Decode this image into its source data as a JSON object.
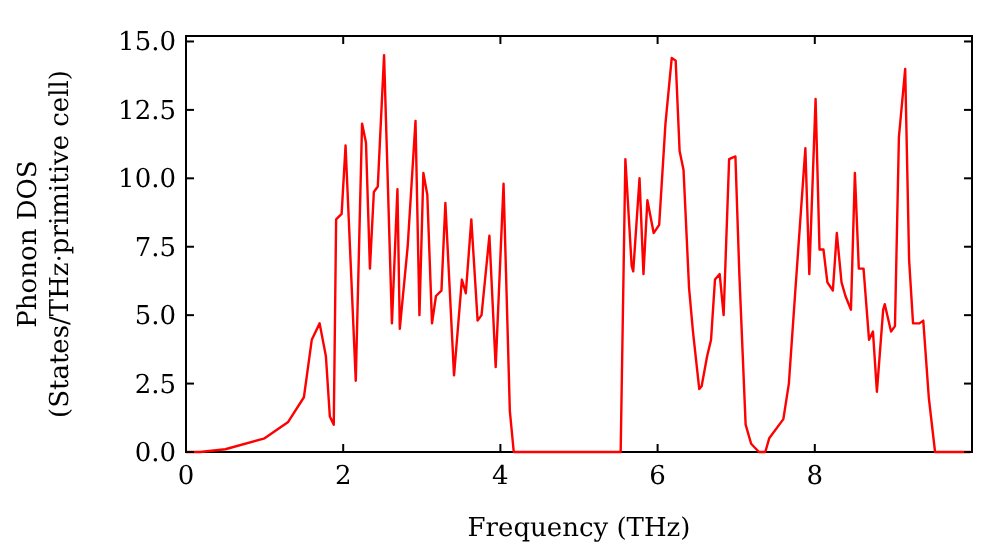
{
  "chart_data": {
    "type": "line",
    "xlabel": "Frequency (THz)",
    "ylabel": "Phonon DOS\n(States/THz·primitive cell)",
    "xlim": [
      0,
      10
    ],
    "ylim": [
      0,
      15.2
    ],
    "xticks": [
      0,
      2,
      4,
      6,
      8
    ],
    "yticks": [
      {
        "value": 0,
        "label": "0.0"
      },
      {
        "value": 2.5,
        "label": "2.5"
      },
      {
        "value": 5,
        "label": "5.0"
      },
      {
        "value": 7.5,
        "label": "7.5"
      },
      {
        "value": 10,
        "label": "10.0"
      },
      {
        "value": 12.5,
        "label": "12.5"
      },
      {
        "value": 15,
        "label": "15.0"
      }
    ],
    "grid": false,
    "marker": "none",
    "line_style": "solid",
    "series": [
      {
        "color": "#ff0000",
        "x": [
          0,
          0.18,
          0.5,
          1.0,
          1.3,
          1.5,
          1.6,
          1.7,
          1.78,
          1.83,
          1.88,
          1.91,
          1.98,
          2.03,
          2.16,
          2.24,
          2.29,
          2.34,
          2.39,
          2.44,
          2.52,
          2.62,
          2.69,
          2.72,
          2.82,
          2.92,
          2.97,
          3.02,
          3.07,
          3.13,
          3.18,
          3.25,
          3.3,
          3.41,
          3.51,
          3.56,
          3.63,
          3.71,
          3.76,
          3.86,
          3.94,
          4.04,
          4.12,
          4.17,
          5.53,
          5.59,
          5.67,
          5.69,
          5.77,
          5.82,
          5.87,
          5.95,
          6.02,
          6.1,
          6.18,
          6.23,
          6.28,
          6.33,
          6.4,
          6.45,
          6.53,
          6.56,
          6.63,
          6.68,
          6.73,
          6.79,
          6.84,
          6.91,
          6.99,
          7.04,
          7.12,
          7.19,
          7.29,
          7.37,
          7.42,
          7.6,
          7.67,
          7.75,
          7.88,
          7.93,
          8.01,
          8.06,
          8.11,
          8.16,
          8.23,
          8.28,
          8.34,
          8.39,
          8.46,
          8.51,
          8.56,
          8.62,
          8.69,
          8.74,
          8.79,
          8.87,
          8.89,
          8.97,
          9.02,
          9.07,
          9.15,
          9.2,
          9.25,
          9.33,
          9.38,
          9.45,
          9.53,
          9.98
        ],
        "values": [
          0,
          0,
          0.1,
          0.5,
          1.1,
          2.0,
          4.1,
          4.7,
          3.5,
          1.3,
          1.0,
          8.5,
          8.7,
          11.2,
          2.6,
          12.0,
          11.3,
          6.7,
          9.5,
          9.7,
          14.5,
          4.7,
          9.6,
          4.5,
          7.5,
          12.1,
          5.0,
          10.2,
          9.4,
          4.7,
          5.7,
          5.9,
          9.1,
          2.8,
          6.3,
          5.8,
          8.5,
          4.8,
          5.0,
          7.9,
          3.1,
          9.8,
          1.5,
          0,
          0,
          10.7,
          6.8,
          6.6,
          10.0,
          6.5,
          9.2,
          8.0,
          8.3,
          12.0,
          14.4,
          14.3,
          11.0,
          10.3,
          6.0,
          4.4,
          2.3,
          2.4,
          3.5,
          4.1,
          6.3,
          6.5,
          5.0,
          10.7,
          10.8,
          6.5,
          1.0,
          0.3,
          0,
          0,
          0.5,
          1.2,
          2.5,
          5.8,
          11.1,
          6.5,
          12.9,
          7.4,
          7.4,
          6.2,
          5.9,
          8.0,
          6.2,
          5.7,
          5.2,
          10.2,
          6.7,
          6.7,
          4.1,
          4.4,
          2.2,
          5.2,
          5.4,
          4.4,
          4.6,
          11.5,
          14.0,
          7.0,
          4.7,
          4.7,
          4.8,
          2.0,
          0,
          0
        ]
      }
    ]
  }
}
